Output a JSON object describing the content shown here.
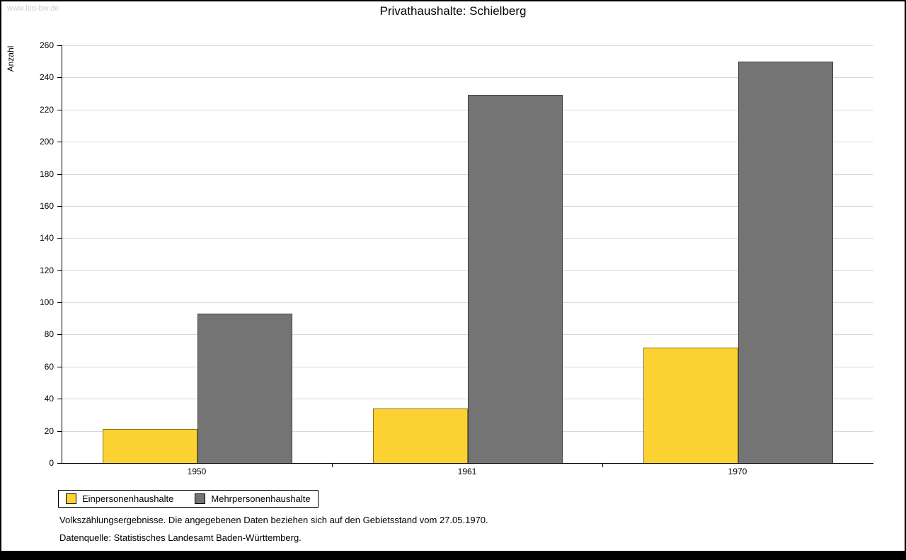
{
  "watermark": "www.leo-bw.de",
  "title": "Privathaushalte: Schielberg",
  "ylabel": "Anzahl",
  "footnotes": {
    "line1": "Volkszählungsergebnisse. Die angegebenen Daten beziehen sich auf den Gebietsstand vom 27.05.1970.",
    "line2": "Datenquelle: Statistisches Landesamt Baden-Württemberg."
  },
  "colors": {
    "series1": "#fcd232",
    "series2": "#747474",
    "grid": "#d9d9d9",
    "axis": "#000000"
  },
  "chart_data": {
    "type": "bar",
    "title": "Privathaushalte: Schielberg",
    "categories": [
      "1950",
      "1961",
      "1970"
    ],
    "series": [
      {
        "name": "Einpersonenhaushalte",
        "color": "#fcd232",
        "values": [
          21,
          34,
          72
        ]
      },
      {
        "name": "Mehrpersonenhaushalte",
        "color": "#747474",
        "values": [
          93,
          229,
          250
        ]
      }
    ],
    "xlabel": "",
    "ylabel": "Anzahl",
    "ylim": [
      0,
      260
    ],
    "ytick_step": 20,
    "grid": true,
    "legend_position": "bottom-left"
  }
}
